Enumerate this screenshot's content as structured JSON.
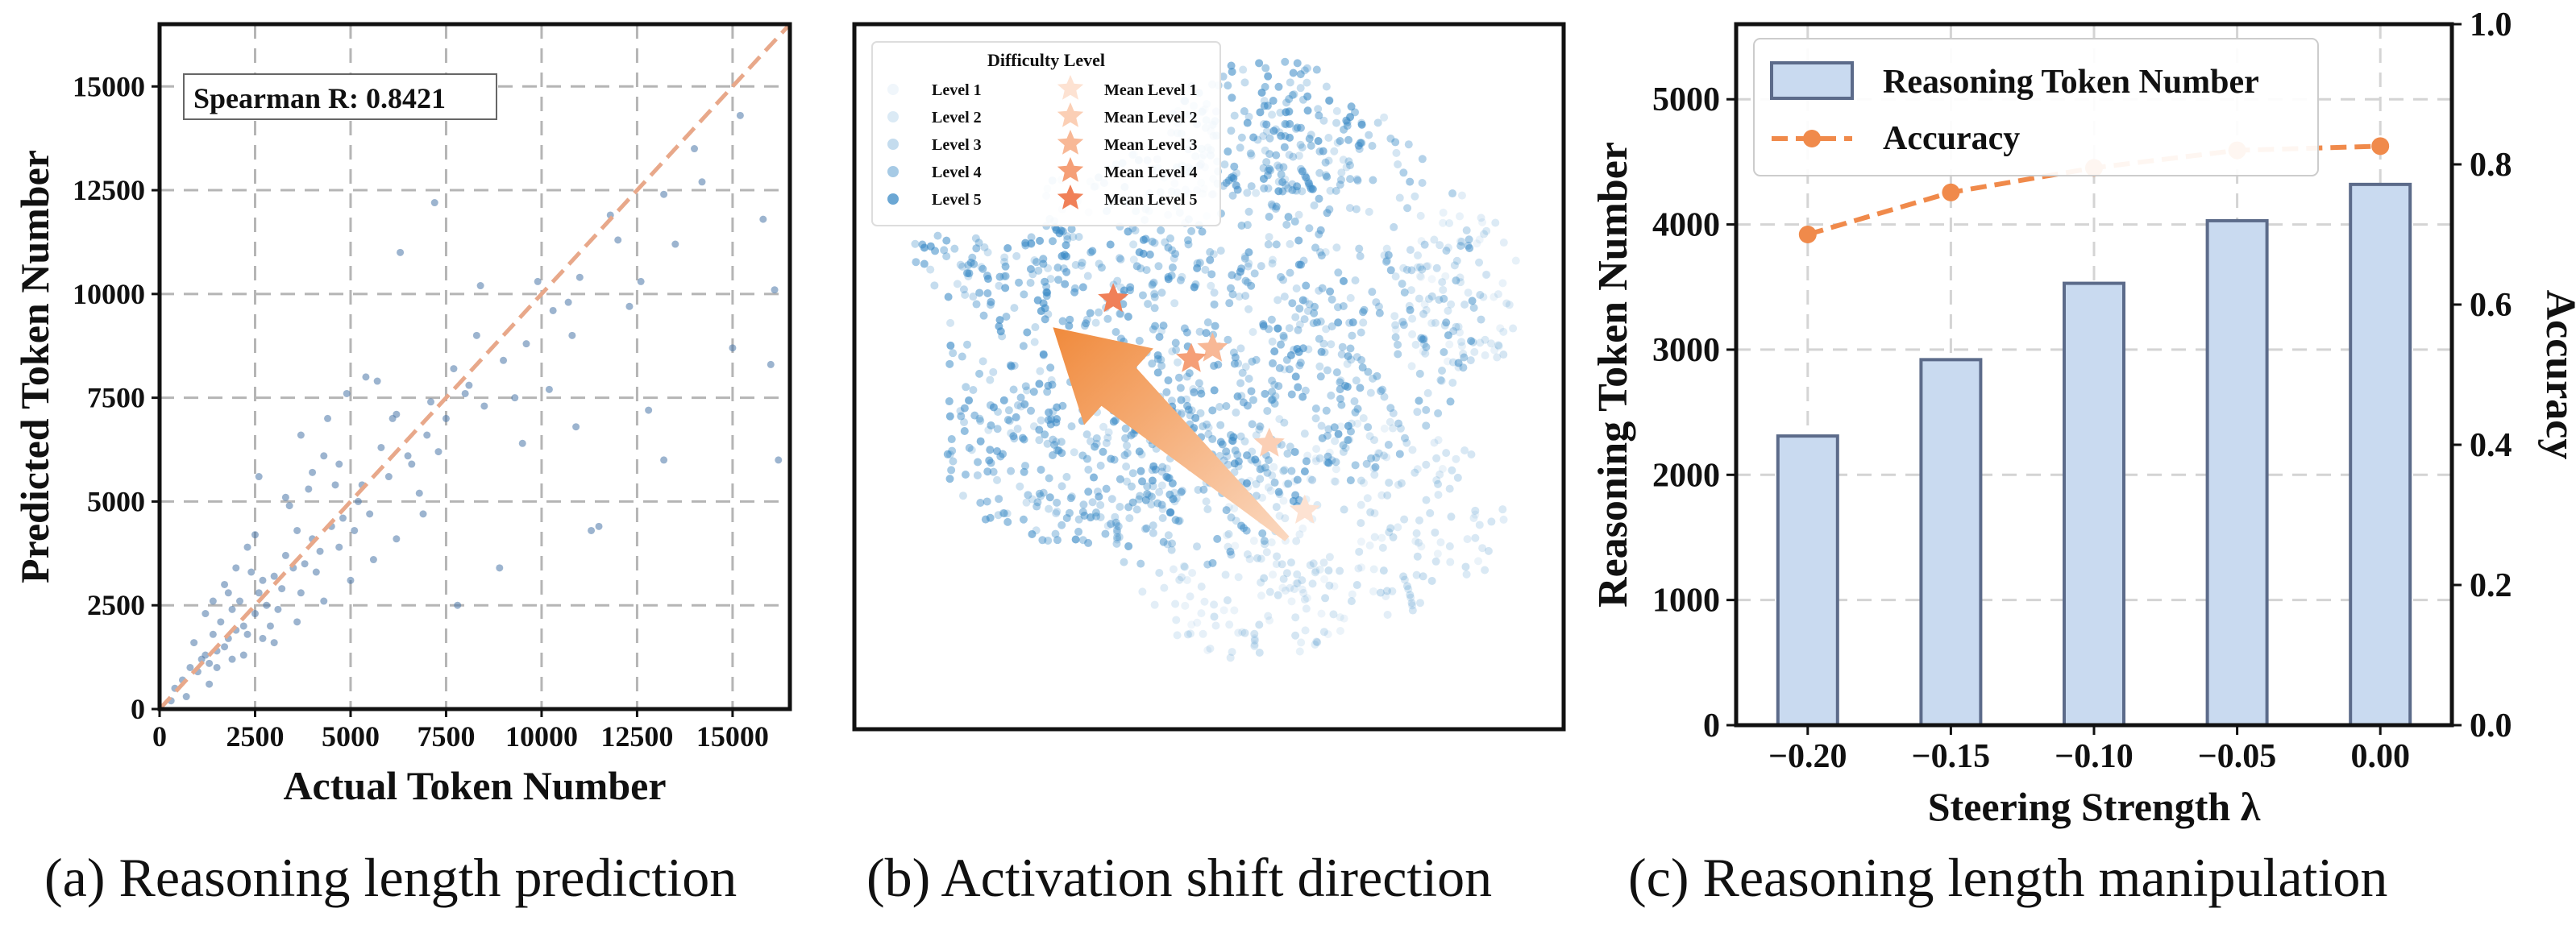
{
  "captions": {
    "a": "(a) Reasoning length prediction",
    "b": "(b) Activation shift direction",
    "c": "(c) Reasoning length manipulation"
  },
  "colors": {
    "scatter_point": "#4a76a8",
    "diagonal": "#e8a88a",
    "bar_fill": "#c9daf0",
    "bar_edge": "#5c6b8a",
    "accuracy_line": "#f08a4b",
    "cluster_blue": "#3a8ac6",
    "arrow_start": "#f08a3c",
    "arrow_end": "#fbd9c1",
    "grid": "#b5b5b5"
  },
  "chart_data": [
    {
      "type": "scatter",
      "xlabel": "Actual Token Number",
      "ylabel": "Predicted Token Number",
      "xlim": [
        0,
        16500
      ],
      "ylim": [
        0,
        16500
      ],
      "xticks": [
        0,
        2500,
        5000,
        7500,
        10000,
        12500,
        15000
      ],
      "yticks": [
        0,
        2500,
        5000,
        7500,
        10000,
        12500,
        15000
      ],
      "grid": true,
      "annotation": "Spearman R: 0.8421",
      "reference_line": "y = x",
      "points": [
        [
          1200,
          1300
        ],
        [
          1500,
          1400
        ],
        [
          1800,
          1700
        ],
        [
          1400,
          1800
        ],
        [
          2000,
          1900
        ],
        [
          1300,
          1100
        ],
        [
          1600,
          2100
        ],
        [
          2200,
          2000
        ],
        [
          1700,
          1500
        ],
        [
          1100,
          1200
        ],
        [
          2500,
          2300
        ],
        [
          1900,
          2400
        ],
        [
          2300,
          1800
        ],
        [
          1000,
          900
        ],
        [
          800,
          1000
        ],
        [
          1500,
          1000
        ],
        [
          2100,
          2600
        ],
        [
          2600,
          2800
        ],
        [
          2800,
          2500
        ],
        [
          3000,
          3200
        ],
        [
          3200,
          2900
        ],
        [
          3500,
          3400
        ],
        [
          2700,
          3100
        ],
        [
          3300,
          3700
        ],
        [
          3800,
          3500
        ],
        [
          4000,
          4100
        ],
        [
          4200,
          3800
        ],
        [
          3600,
          4300
        ],
        [
          4500,
          4400
        ],
        [
          4800,
          4600
        ],
        [
          2400,
          3300
        ],
        [
          1800,
          2800
        ],
        [
          2900,
          2000
        ],
        [
          3100,
          2400
        ],
        [
          3700,
          2800
        ],
        [
          4100,
          3300
        ],
        [
          1200,
          2300
        ],
        [
          900,
          1600
        ],
        [
          600,
          700
        ],
        [
          400,
          500
        ],
        [
          5200,
          5000
        ],
        [
          5500,
          4700
        ],
        [
          6000,
          5600
        ],
        [
          4600,
          5400
        ],
        [
          5800,
          6300
        ],
        [
          6500,
          6100
        ],
        [
          7000,
          6600
        ],
        [
          6200,
          7100
        ],
        [
          7500,
          7000
        ],
        [
          8000,
          7600
        ],
        [
          4700,
          3900
        ],
        [
          5100,
          4300
        ],
        [
          2500,
          4200
        ],
        [
          3300,
          5100
        ],
        [
          4000,
          5700
        ],
        [
          4300,
          6100
        ],
        [
          6800,
          5200
        ],
        [
          7300,
          6200
        ],
        [
          8500,
          7300
        ],
        [
          9000,
          8400
        ],
        [
          9600,
          8800
        ],
        [
          10300,
          9600
        ],
        [
          11000,
          10400
        ],
        [
          12000,
          11300
        ],
        [
          13200,
          12400
        ],
        [
          14000,
          13500
        ],
        [
          15200,
          14300
        ],
        [
          15800,
          11800
        ],
        [
          16200,
          6000
        ],
        [
          16100,
          10100
        ],
        [
          16000,
          8300
        ],
        [
          6300,
          11000
        ],
        [
          7200,
          12200
        ],
        [
          8400,
          10200
        ],
        [
          10700,
          9800
        ],
        [
          11500,
          4400
        ],
        [
          11300,
          4300
        ],
        [
          7800,
          2500
        ],
        [
          8900,
          3400
        ],
        [
          5700,
          7900
        ],
        [
          4900,
          7600
        ],
        [
          3700,
          6600
        ],
        [
          2600,
          5600
        ],
        [
          4400,
          7000
        ],
        [
          5400,
          8000
        ],
        [
          6100,
          7000
        ],
        [
          8100,
          7800
        ],
        [
          9300,
          7500
        ],
        [
          12800,
          7200
        ],
        [
          13200,
          6000
        ],
        [
          12600,
          10300
        ],
        [
          13500,
          11200
        ],
        [
          14200,
          12700
        ],
        [
          15000,
          8700
        ],
        [
          1700,
          3000
        ],
        [
          2000,
          3400
        ],
        [
          2300,
          3900
        ],
        [
          1400,
          2600
        ],
        [
          3400,
          4900
        ],
        [
          3900,
          5300
        ],
        [
          4700,
          5900
        ],
        [
          5300,
          5400
        ],
        [
          6600,
          5900
        ],
        [
          7100,
          7400
        ],
        [
          7700,
          8200
        ],
        [
          8300,
          9000
        ],
        [
          9900,
          10300
        ],
        [
          10800,
          9000
        ],
        [
          11800,
          11900
        ],
        [
          12300,
          9700
        ],
        [
          9500,
          6400
        ],
        [
          10200,
          7700
        ],
        [
          10900,
          6800
        ],
        [
          3000,
          1600
        ],
        [
          3600,
          2100
        ],
        [
          4300,
          2600
        ],
        [
          5000,
          3100
        ],
        [
          5600,
          3600
        ],
        [
          6200,
          4100
        ],
        [
          6900,
          4700
        ],
        [
          2200,
          1300
        ],
        [
          2700,
          1700
        ],
        [
          1900,
          1200
        ],
        [
          1300,
          600
        ],
        [
          700,
          300
        ],
        [
          300,
          200
        ]
      ]
    },
    {
      "type": "scatter",
      "title": "",
      "legend": {
        "title": "Difficulty Level",
        "levels": [
          "Level 1",
          "Level 2",
          "Level 3",
          "Level 4",
          "Level 5"
        ],
        "means": [
          "Mean Level 1",
          "Mean Level 2",
          "Mean Level 3",
          "Mean Level 4",
          "Mean Level 5"
        ],
        "placement": "top-left"
      },
      "axes_visible": false,
      "mean_points": [
        {
          "level": "Mean Level 1",
          "x": 0.635,
          "y": 0.69
        },
        {
          "level": "Mean Level 2",
          "x": 0.585,
          "y": 0.595
        },
        {
          "level": "Mean Level 3",
          "x": 0.505,
          "y": 0.46
        },
        {
          "level": "Mean Level 4",
          "x": 0.475,
          "y": 0.475
        },
        {
          "level": "Mean Level 5",
          "x": 0.365,
          "y": 0.39
        }
      ],
      "arrow": {
        "from": [
          0.61,
          0.73
        ],
        "to": [
          0.28,
          0.43
        ]
      }
    },
    {
      "type": "bar",
      "categories": [
        "−0.20",
        "−0.15",
        "−0.10",
        "−0.05",
        "0.00"
      ],
      "xlabel": "Steering Strength λ",
      "ylabel": "Reasoning Token Number",
      "y2label": "Accuracy",
      "ylim": [
        0,
        5600
      ],
      "y2lim": [
        0.0,
        1.0
      ],
      "yticks": [
        0,
        1000,
        2000,
        3000,
        4000,
        5000
      ],
      "y2ticks": [
        0.0,
        0.2,
        0.4,
        0.6,
        0.8,
        1.0
      ],
      "grid": true,
      "legend_placement": "top-left",
      "series": [
        {
          "name": "Reasoning Token Number",
          "type": "bar",
          "values": [
            2310,
            2920,
            3530,
            4030,
            4320
          ]
        },
        {
          "name": "Accuracy",
          "type": "line",
          "axis": "right",
          "values": [
            0.7,
            0.76,
            0.795,
            0.82,
            0.826
          ]
        }
      ]
    }
  ]
}
